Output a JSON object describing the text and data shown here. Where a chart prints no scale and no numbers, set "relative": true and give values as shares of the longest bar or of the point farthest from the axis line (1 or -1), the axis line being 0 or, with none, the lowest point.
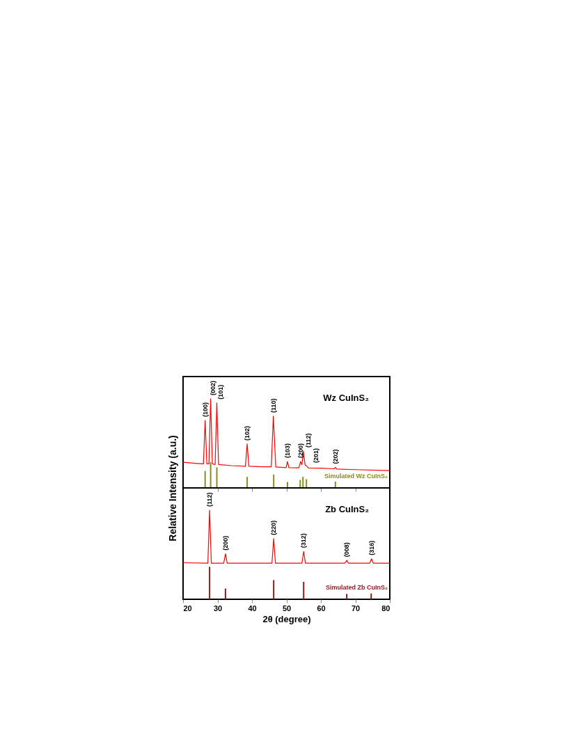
{
  "chart_data": [
    {
      "type": "line",
      "relative": true,
      "ylabel": "Relative Intensity (a.u.)",
      "xlim": [
        20,
        80
      ],
      "xticks": [
        20,
        30,
        40,
        50,
        60,
        70,
        80
      ],
      "tick_labels": false,
      "grid": false,
      "marker": "none",
      "line_style": "solid",
      "annotations": [
        "Wz CuInS₂",
        {
          "text": "(100)",
          "x": 26.4,
          "y": 0.757
        },
        {
          "text": "(002)",
          "x": 28.0,
          "y": 1.0
        },
        {
          "text": "(101)",
          "x": 29.8,
          "y": 0.955
        },
        {
          "text": "(102)",
          "x": 38.6,
          "y": 0.493
        },
        {
          "text": "(110)",
          "x": 46.2,
          "y": 0.805
        },
        {
          "text": "(103)",
          "x": 50.3,
          "y": 0.296
        },
        {
          "text": "(200)",
          "x": 54.1,
          "y": 0.296
        },
        {
          "text": "(112)",
          "x": 54.9,
          "y": 0.414
        },
        {
          "text": "(201)",
          "x": 55.9,
          "y": 0.243
        },
        {
          "text": "(202)",
          "x": 64.2,
          "y": 0.23
        }
      ],
      "series": [
        {
          "color": "#ff0000",
          "x": [
            20,
            24,
            25.9,
            26.4,
            26.9,
            27.5,
            28.0,
            28.5,
            29.3,
            29.8,
            30.3,
            34,
            38.1,
            38.6,
            39.1,
            43,
            45.6,
            46.2,
            46.9,
            49.9,
            50.3,
            50.7,
            53.6,
            54.1,
            54.5,
            54.9,
            55.4,
            55.9,
            56.4,
            60,
            63.8,
            64.2,
            64.6,
            70,
            80
          ],
          "values": [
            0.288,
            0.275,
            0.27,
            0.757,
            0.27,
            0.27,
            1.0,
            0.27,
            0.262,
            0.955,
            0.262,
            0.25,
            0.243,
            0.493,
            0.243,
            0.238,
            0.238,
            0.805,
            0.235,
            0.228,
            0.296,
            0.228,
            0.226,
            0.296,
            0.26,
            0.414,
            0.26,
            0.243,
            0.224,
            0.222,
            0.215,
            0.23,
            0.212,
            0.205,
            0.195
          ]
        },
        {
          "type": "bar",
          "name": "Simulated Wz CuInS₂",
          "color": "#8c8c1e",
          "x": [
            26.4,
            28.0,
            29.8,
            38.6,
            46.3,
            50.3,
            54.0,
            54.8,
            55.8,
            64.2
          ],
          "values": [
            0.19,
            0.288,
            0.23,
            0.124,
            0.15,
            0.066,
            0.09,
            0.124,
            0.098,
            0.071
          ]
        }
      ]
    },
    {
      "type": "line",
      "relative": true,
      "xlabel": "2θ (degree)",
      "xlim": [
        20,
        80
      ],
      "xticks": [
        20,
        30,
        40,
        50,
        60,
        70,
        80
      ],
      "tick_labels": "x",
      "grid": false,
      "marker": "none",
      "line_style": "solid",
      "annotations": [
        "Zb CuInS₂",
        {
          "text": "(112)",
          "x": 27.7,
          "y": 1.0
        },
        {
          "text": "(200)",
          "x": 32.3,
          "y": 0.51
        },
        {
          "text": "(220)",
          "x": 46.3,
          "y": 0.681
        },
        {
          "text": "(312)",
          "x": 55.0,
          "y": 0.537
        },
        {
          "text": "(008)",
          "x": 67.5,
          "y": 0.436
        },
        {
          "text": "(316)",
          "x": 74.7,
          "y": 0.455
        }
      ],
      "series": [
        {
          "color": "#ff0000",
          "x": [
            20,
            27.2,
            27.7,
            28.2,
            31.8,
            32.3,
            32.8,
            40,
            45.8,
            46.3,
            46.8,
            54.5,
            55.0,
            55.5,
            67.0,
            67.5,
            68.0,
            74.2,
            74.7,
            75.2,
            80
          ],
          "values": [
            0.41,
            0.406,
            1.0,
            0.406,
            0.406,
            0.51,
            0.406,
            0.406,
            0.406,
            0.681,
            0.406,
            0.406,
            0.537,
            0.406,
            0.406,
            0.436,
            0.406,
            0.406,
            0.455,
            0.406,
            0.406
          ]
        },
        {
          "type": "bar",
          "name": "Simulated Zb CuInS₂",
          "color": "#8b1a1a",
          "x": [
            27.7,
            32.3,
            46.3,
            55.0,
            67.5,
            74.6
          ],
          "values": [
            0.365,
            0.12,
            0.215,
            0.196,
            0.06,
            0.065
          ]
        }
      ]
    }
  ]
}
